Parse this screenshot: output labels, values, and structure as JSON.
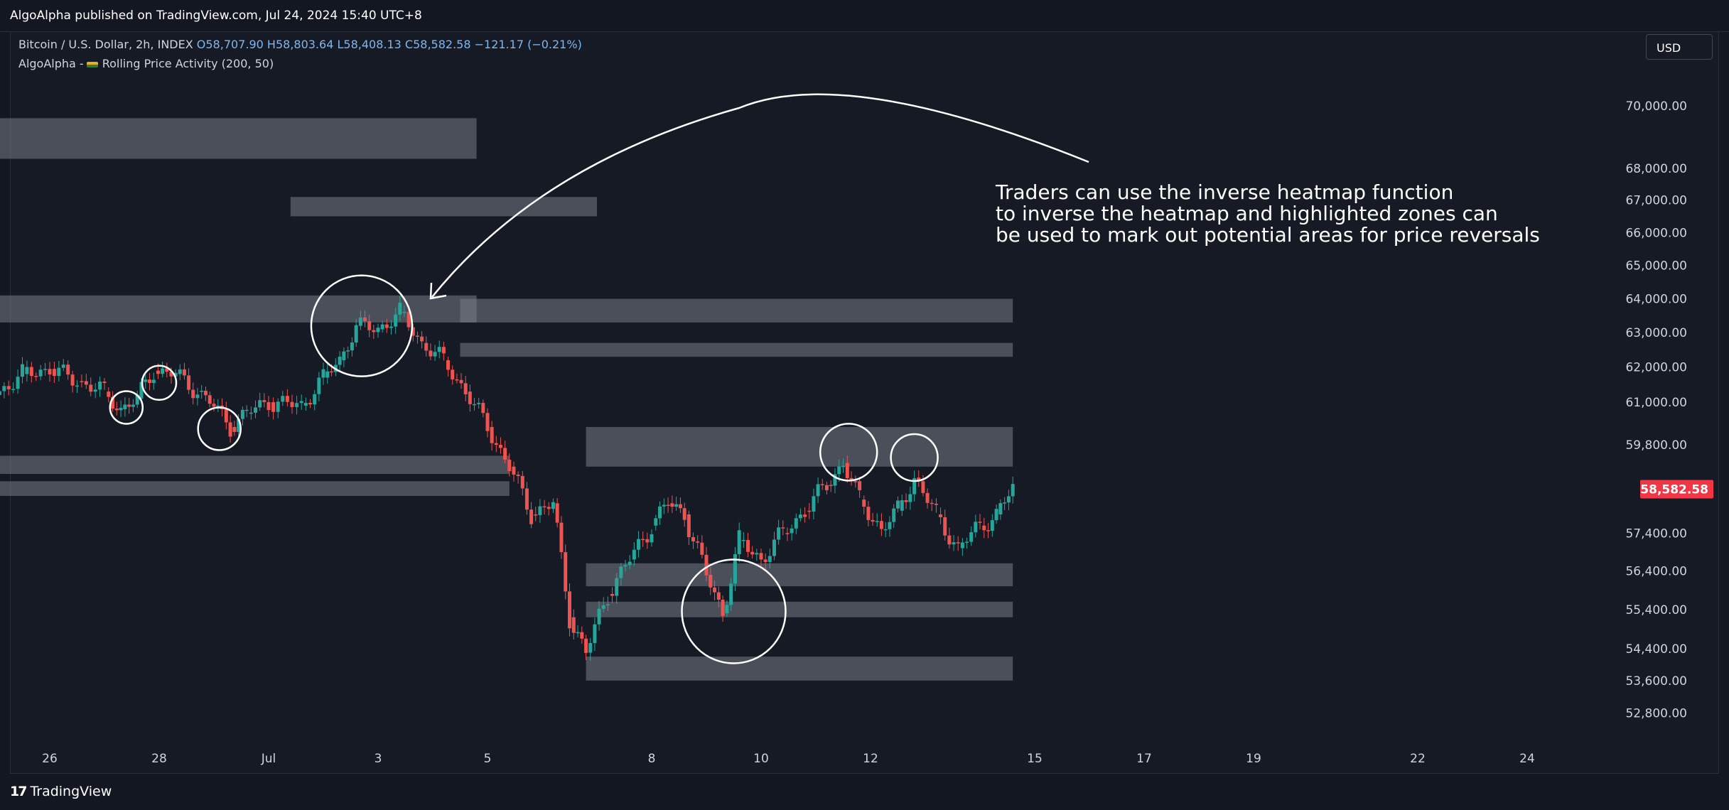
{
  "header": {
    "publisher_text": "AlgoAlpha published on TradingView.com, Jul 24, 2024 15:40 UTC+8"
  },
  "legend": {
    "symbol": "Bitcoin / U.S. Dollar, 2h, INDEX",
    "open": "O58,707.90",
    "high": "H58,803.64",
    "low": "L58,408.13",
    "close": "C58,582.58",
    "change": "−121.17 (−0.21%)",
    "indicator_prefix": "AlgoAlpha -",
    "indicator_name": "Rolling Price Activity (200, 50)"
  },
  "currency_button": "USD",
  "last_price_label": "58,582.58",
  "annotation": {
    "line1": "Traders can use the inverse heatmap function",
    "line2": "to inverse the heatmap and highlighted zones can",
    "line3": "be used to mark out potential areas for price reversals"
  },
  "footer": {
    "brand_logo": "17",
    "brand_name": "TradingView"
  },
  "colors": {
    "background": "#131722",
    "up_candle": "#26a69a",
    "down_candle": "#ef5350",
    "price_label_bg": "#f23645",
    "zone": "#787b86"
  },
  "chart_data": {
    "type": "candlestick",
    "title": "Bitcoin / U.S. Dollar, 2h, INDEX",
    "y_axis": {
      "scale": "log",
      "tick_labels": [
        "70,000.00",
        "68,000.00",
        "67,000.00",
        "66,000.00",
        "65,000.00",
        "64,000.00",
        "63,000.00",
        "62,000.00",
        "61,000.00",
        "59,800.00",
        "57,400.00",
        "56,400.00",
        "55,400.00",
        "54,400.00",
        "53,600.00",
        "52,800.00"
      ],
      "ticks": [
        70000,
        68000,
        67000,
        66000,
        65000,
        64000,
        63000,
        62000,
        61000,
        59800,
        57400,
        56400,
        55400,
        54400,
        53600,
        52800
      ]
    },
    "x_axis": {
      "tick_labels": [
        "26",
        "28",
        "Jul",
        "3",
        "5",
        "8",
        "10",
        "12",
        "15",
        "17",
        "19",
        "22",
        "24"
      ],
      "ticks": [
        26,
        28,
        30,
        32,
        34,
        37,
        39,
        41,
        44,
        46,
        48,
        51,
        53
      ]
    },
    "series": [
      {
        "name": "Bitcoin / U.S. Dollar",
        "points": [
          [
            25.0,
            61200
          ],
          [
            25.5,
            61800
          ],
          [
            26.0,
            61950
          ],
          [
            26.5,
            61600
          ],
          [
            27.0,
            61300
          ],
          [
            27.3,
            60800
          ],
          [
            27.6,
            61100
          ],
          [
            27.9,
            61900
          ],
          [
            28.3,
            61800
          ],
          [
            28.7,
            61300
          ],
          [
            29.0,
            60900
          ],
          [
            29.3,
            60300
          ],
          [
            29.6,
            60700
          ],
          [
            30.0,
            61000
          ],
          [
            30.6,
            60900
          ],
          [
            31.0,
            61700
          ],
          [
            31.3,
            62200
          ],
          [
            31.6,
            63200
          ],
          [
            32.0,
            63100
          ],
          [
            32.4,
            63600
          ],
          [
            32.8,
            62700
          ],
          [
            33.2,
            62200
          ],
          [
            33.6,
            61300
          ],
          [
            34.0,
            60300
          ],
          [
            34.4,
            59200
          ],
          [
            34.8,
            57900
          ],
          [
            35.2,
            58200
          ],
          [
            35.5,
            55200
          ],
          [
            35.8,
            54300
          ],
          [
            36.2,
            55800
          ],
          [
            36.6,
            56700
          ],
          [
            37.0,
            57600
          ],
          [
            37.3,
            58200
          ],
          [
            37.6,
            57900
          ],
          [
            38.0,
            56300
          ],
          [
            38.3,
            55300
          ],
          [
            38.6,
            57200
          ],
          [
            39.0,
            56700
          ],
          [
            39.4,
            57400
          ],
          [
            39.8,
            58000
          ],
          [
            40.2,
            58700
          ],
          [
            40.5,
            59300
          ],
          [
            40.8,
            58300
          ],
          [
            41.2,
            57500
          ],
          [
            41.5,
            58000
          ],
          [
            41.8,
            58900
          ],
          [
            42.2,
            57900
          ],
          [
            42.6,
            57000
          ],
          [
            43.0,
            57600
          ],
          [
            43.3,
            57900
          ],
          [
            43.6,
            58600
          ]
        ]
      }
    ],
    "zones": [
      {
        "from": 25.0,
        "to": 33.8,
        "low": 68300,
        "high": 69600
      },
      {
        "from": 25.0,
        "to": 33.8,
        "low": 63300,
        "high": 64100
      },
      {
        "from": 25.0,
        "to": 34.4,
        "low": 59000,
        "high": 59500
      },
      {
        "from": 25.0,
        "to": 34.4,
        "low": 58400,
        "high": 58800
      },
      {
        "from": 30.4,
        "to": 36.0,
        "low": 66500,
        "high": 67100
      },
      {
        "from": 33.5,
        "to": 43.6,
        "low": 63300,
        "high": 64000
      },
      {
        "from": 33.5,
        "to": 43.6,
        "low": 62300,
        "high": 62700
      },
      {
        "from": 35.8,
        "to": 43.6,
        "low": 59200,
        "high": 60300
      },
      {
        "from": 35.8,
        "to": 43.6,
        "low": 56000,
        "high": 56600
      },
      {
        "from": 35.8,
        "to": 43.6,
        "low": 55200,
        "high": 55600
      },
      {
        "from": 35.8,
        "to": 43.6,
        "low": 53600,
        "high": 54200
      }
    ]
  }
}
